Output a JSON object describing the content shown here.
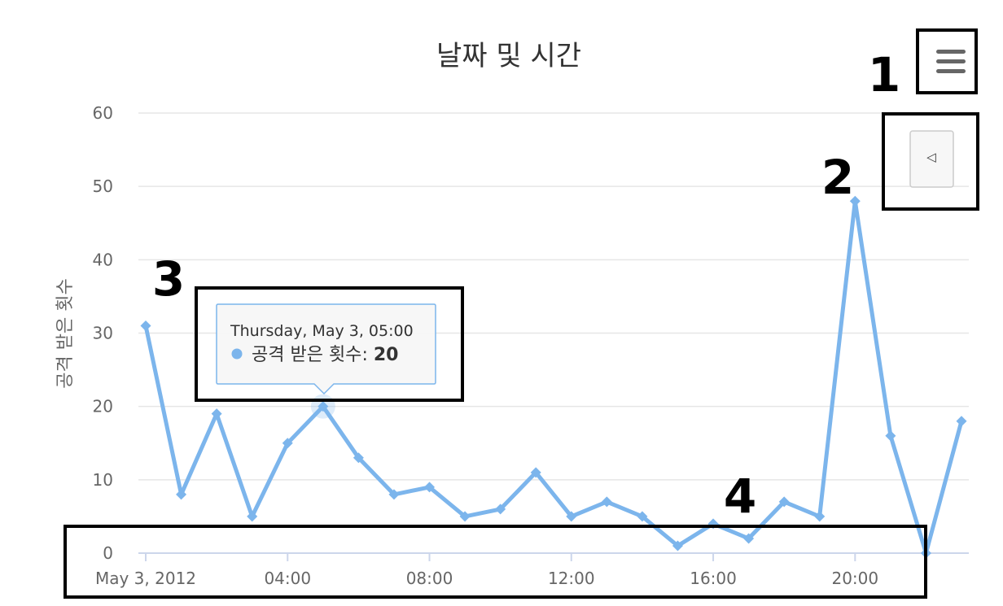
{
  "chart_data": {
    "type": "line",
    "title": "날짜 및 시간",
    "ylabel": "공격 받은 횟수",
    "xlabel": "",
    "ylim": [
      0,
      60
    ],
    "y_ticks": [
      "0",
      "10",
      "20",
      "30",
      "40",
      "50",
      "60"
    ],
    "x_ticks": [
      {
        "hour": 0,
        "label": "May 3, 2012"
      },
      {
        "hour": 4,
        "label": "04:00"
      },
      {
        "hour": 8,
        "label": "08:00"
      },
      {
        "hour": 12,
        "label": "12:00"
      },
      {
        "hour": 16,
        "label": "16:00"
      },
      {
        "hour": 20,
        "label": "20:00"
      }
    ],
    "series": [
      {
        "name": "공격 받은 횟수",
        "color": "#7cb5ec",
        "x": [
          0,
          1,
          2,
          3,
          4,
          5,
          6,
          7,
          8,
          9,
          10,
          11,
          12,
          13,
          14,
          15,
          16,
          17,
          18,
          19,
          20,
          21,
          22,
          23
        ],
        "values": [
          31,
          8,
          19,
          5,
          15,
          20,
          13,
          8,
          9,
          5,
          6,
          11,
          5,
          7,
          5,
          1,
          4,
          2,
          7,
          5,
          48,
          16,
          0,
          18
        ]
      }
    ],
    "grid": true,
    "tooltip": {
      "header": "Thursday, May 3, 05:00",
      "series_label": "공격 받은 횟수",
      "value": "20",
      "hovered_index": 5
    }
  },
  "ui": {
    "menu_icon": "hamburger-menu-icon",
    "back_icon": "triangle-left-icon",
    "back_symbol": "◁"
  },
  "annotations": [
    "1",
    "2",
    "3",
    "4"
  ]
}
